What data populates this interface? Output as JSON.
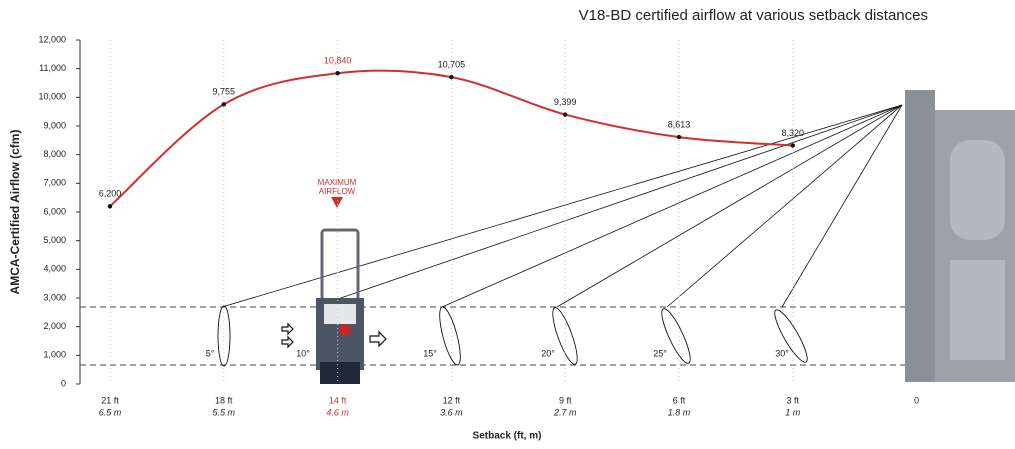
{
  "chart_data": {
    "type": "line",
    "title": "V18-BD certified airflow at various setback distances",
    "y_label": "AMCA-Certified Airflow (cfm)",
    "x_label": "Setback (ft, m)",
    "categories": [
      "21 ft",
      "18 ft",
      "14 ft",
      "12 ft",
      "9 ft",
      "6 ft",
      "3 ft",
      "0"
    ],
    "categories_m": [
      "6.5 m",
      "5.5 m",
      "4.6 m",
      "3.6 m",
      "2.7 m",
      "1.8 m",
      "1 m",
      null
    ],
    "values": [
      6200,
      9755,
      10840,
      10705,
      9399,
      8613,
      8320,
      null
    ],
    "value_labels": [
      "6,200",
      "9,755",
      "10,840",
      "10,705",
      "9,399",
      "8,613",
      "8,320",
      null
    ],
    "color": "#d32f2f",
    "highlight_index": 2,
    "ylim": [
      0,
      12000
    ],
    "yticks": [
      0,
      {
        "value": 1000,
        "label": "1,000"
      },
      {
        "value": 2000,
        "label": "2,000"
      },
      {
        "value": 3000,
        "label": "3,000"
      },
      {
        "value": 4000,
        "label": "4,000"
      },
      {
        "value": 5000,
        "label": "5,000"
      },
      {
        "value": 6000,
        "label": "6,000"
      },
      {
        "value": 7000,
        "label": "7,000"
      },
      {
        "value": 8000,
        "label": "8,000"
      },
      {
        "value": 9000,
        "label": "9,000"
      },
      {
        "value": 10000,
        "label": "10,000"
      },
      {
        "value": 11000,
        "label": "11,000"
      },
      {
        "value": 12000,
        "label": "12,000"
      }
    ],
    "grid": true,
    "annotation": "MAXIMUM AIRFLOW",
    "angle_labels": [
      "5°",
      "10°",
      "15°",
      "20°",
      "25°",
      "30°"
    ]
  }
}
